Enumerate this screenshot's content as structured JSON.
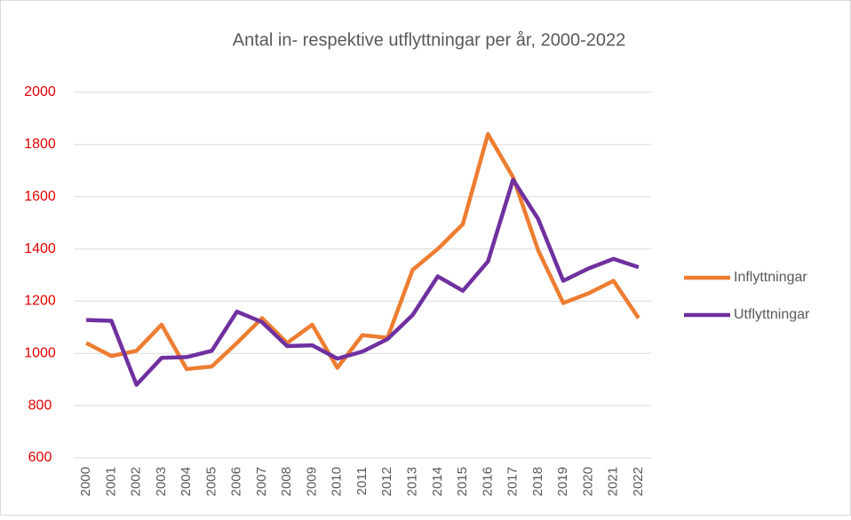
{
  "chart_data": {
    "type": "line",
    "title": "Antal in- respektive utflyttningar per år, 2000-2022",
    "categories": [
      "2000",
      "2001",
      "2002",
      "2003",
      "2004",
      "2005",
      "2006",
      "2007",
      "2008",
      "2009",
      "2010",
      "2011",
      "2012",
      "2013",
      "2014",
      "2015",
      "2016",
      "2017",
      "2018",
      "2019",
      "2020",
      "2021",
      "2022"
    ],
    "series": [
      {
        "name": "Inflyttningar",
        "color": "#ed7d31",
        "values": [
          1040,
          990,
          1010,
          1110,
          940,
          950,
          1040,
          1135,
          1040,
          1110,
          945,
          1070,
          1060,
          1320,
          1400,
          1495,
          1840,
          1675,
          1395,
          1193,
          1230,
          1278,
          1135
        ]
      },
      {
        "name": "Utflyttningar",
        "color": "#7030a0",
        "values": [
          1128,
          1125,
          880,
          983,
          986,
          1010,
          1160,
          1120,
          1028,
          1031,
          980,
          1007,
          1055,
          1147,
          1295,
          1240,
          1352,
          1665,
          1515,
          1278,
          1325,
          1362,
          1330
        ]
      }
    ],
    "ylim": [
      600,
      2000
    ],
    "yticks": [
      600,
      800,
      1000,
      1200,
      1400,
      1600,
      1800,
      2000
    ],
    "grid": true,
    "legend": "right",
    "tick_color": "#e00000"
  }
}
